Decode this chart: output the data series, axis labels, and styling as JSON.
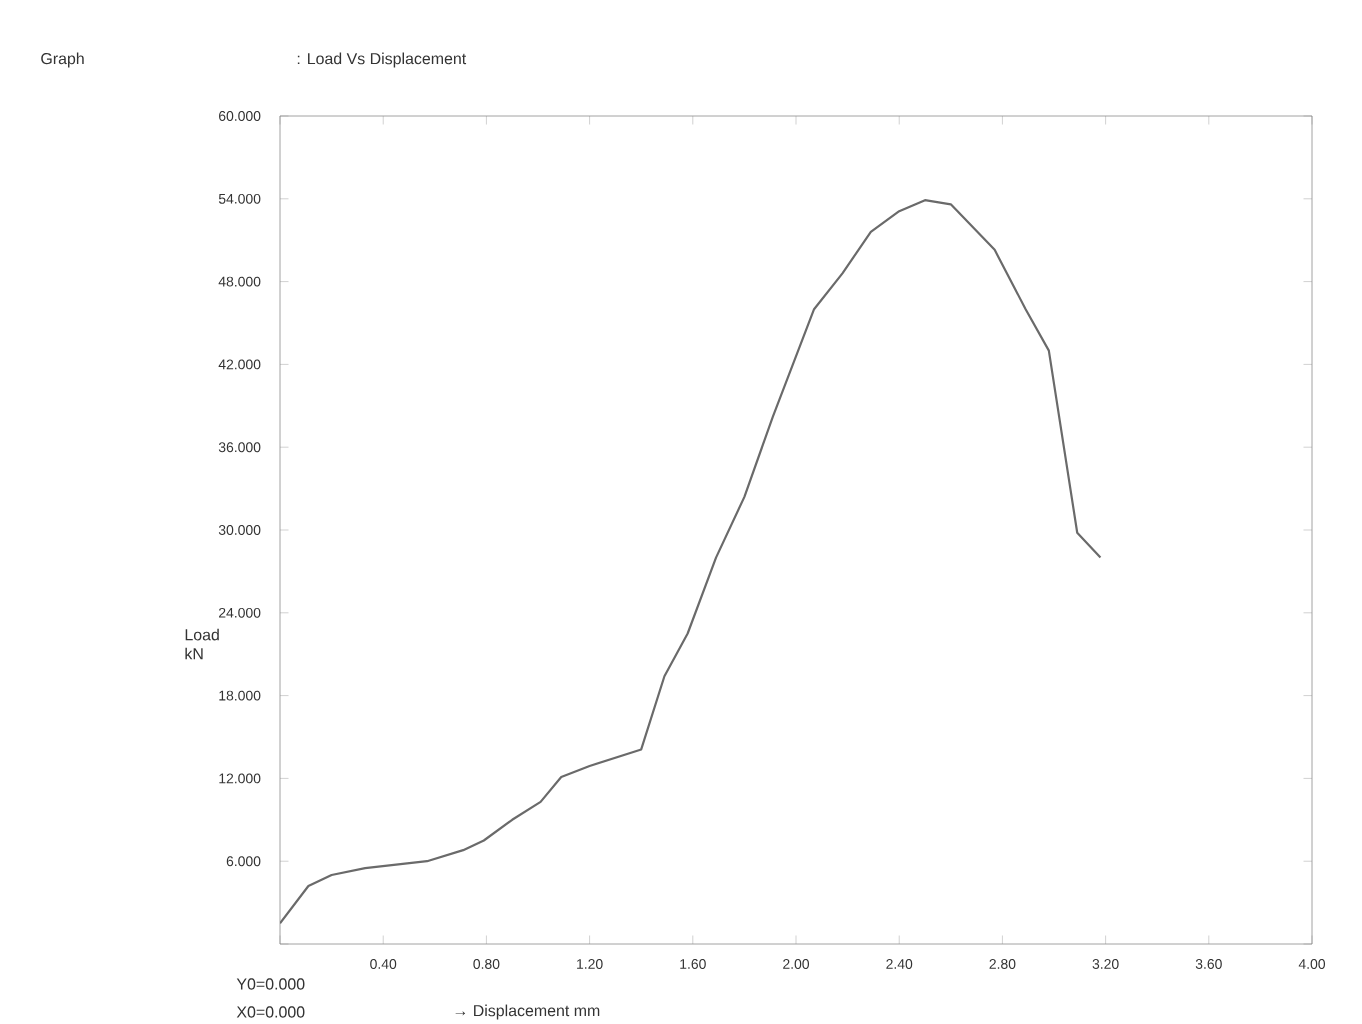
{
  "chart_data": {
    "type": "line",
    "title": ": Load Vs Displacement",
    "xlabel": "→ Displacement mm",
    "ylabel": "Load kN",
    "annotations": [
      "Graph",
      "Y0=0.000",
      "X0=0.000"
    ],
    "x": [
      0,
      0.11,
      0.2,
      0.33,
      0.57,
      0.71,
      0.79,
      0.9,
      1.01,
      1.09,
      1.2,
      1.4,
      1.49,
      1.58,
      1.69,
      1.8,
      1.91,
      2.07,
      2.18,
      2.29,
      2.4,
      2.5,
      2.6,
      2.77,
      2.89,
      2.98,
      3.09,
      3.18
    ],
    "series": [
      {
        "color": "#6a6a6a",
        "values": [
          1.5,
          4.2,
          5.0,
          5.5,
          6.0,
          6.8,
          7.5,
          9.0,
          10.3,
          12.1,
          12.9,
          14.1,
          19.4,
          22.5,
          28.0,
          32.4,
          38.2,
          46.0,
          48.6,
          51.6,
          53.1,
          53.9,
          53.6,
          50.3,
          46.0,
          43.0,
          29.8,
          28.0
        ]
      }
    ],
    "xlim": [
      0,
      4
    ],
    "xticks": [
      {
        "value": 0,
        "label": null
      },
      {
        "value": 0.4,
        "label": "0.40"
      },
      {
        "value": 0.8,
        "label": "0.80"
      },
      {
        "value": 1.2,
        "label": "1.20"
      },
      {
        "value": 1.6,
        "label": "1.60"
      },
      {
        "value": 2.0,
        "label": "2.00"
      },
      {
        "value": 2.4,
        "label": "2.40"
      },
      {
        "value": 2.8,
        "label": "2.80"
      },
      {
        "value": 3.2,
        "label": "3.20"
      },
      {
        "value": 3.6,
        "label": "3.60"
      },
      {
        "value": 4.0,
        "label": "4.00"
      }
    ],
    "ylim": [
      0,
      60
    ],
    "yticks": [
      {
        "value": 0,
        "label": null
      },
      {
        "value": 6,
        "label": "6.000"
      },
      {
        "value": 12,
        "label": "12.000"
      },
      {
        "value": 18,
        "label": "18.000"
      },
      {
        "value": 24,
        "label": "24.000"
      },
      {
        "value": 30,
        "label": "30.000"
      },
      {
        "value": 36,
        "label": "36.000"
      },
      {
        "value": 42,
        "label": "42.000"
      },
      {
        "value": 48,
        "label": "48.000"
      },
      {
        "value": 54,
        "label": "54.000"
      },
      {
        "value": 60,
        "label": "60.000"
      }
    ],
    "grid": false,
    "marker": "none",
    "line_style": "solid"
  }
}
